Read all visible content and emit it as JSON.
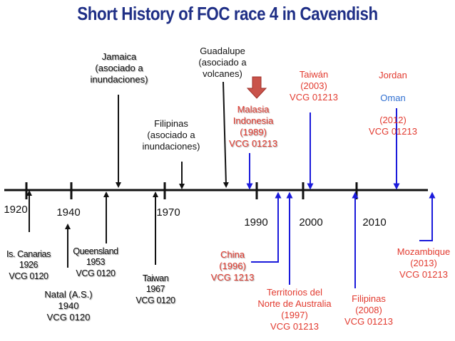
{
  "title": "Short History of FOC race 4 in Cavendish",
  "colors": {
    "title": "#1f2f86",
    "black_event": "#111111",
    "red_event": "#e23a2f",
    "blue_event": "#2f6fd1",
    "blue_arrow": "#1a1adb",
    "highlight_arrow": "#c9534a"
  },
  "years": [
    "1920",
    "1940",
    "1970",
    "1990",
    "2000",
    "2010"
  ],
  "events": {
    "canarias": "Is. Canarias\n1926\nVCG 0120",
    "natal": "Natal (A.S.)\n1940\nVCG 0120",
    "queensland": "Queensland\n1953\nVCG 0120",
    "jamaica": "Jamaica\n(asociado a\ninundaciones)",
    "taiwan_1967": "Taiwan\n1967\nVCG 0120",
    "filipinas_old": "Filipinas\n(asociado a\ninundaciones)",
    "guadalupe": "Guadalupe\n(asociado a\nvolcanes)",
    "malasia": "Malasia\nIndonesia\n(1989)\nVCG 01213",
    "china": "China\n(1996)\nVCG 1213",
    "territorios": "Territorios del\nNorte de Australia\n(1997)\nVCG 01213",
    "taiwan_2003": "Taiwán\n(2003)\nVCG 01213",
    "filipinas_2008": "Filipinas\n(2008)\nVCG 01213",
    "jordan": "Jordan",
    "oman": "Oman",
    "jordan_rest": "(2012)\nVCG 01213",
    "mozambique": "Mozambique\n(2013)\nVCG 01213"
  }
}
